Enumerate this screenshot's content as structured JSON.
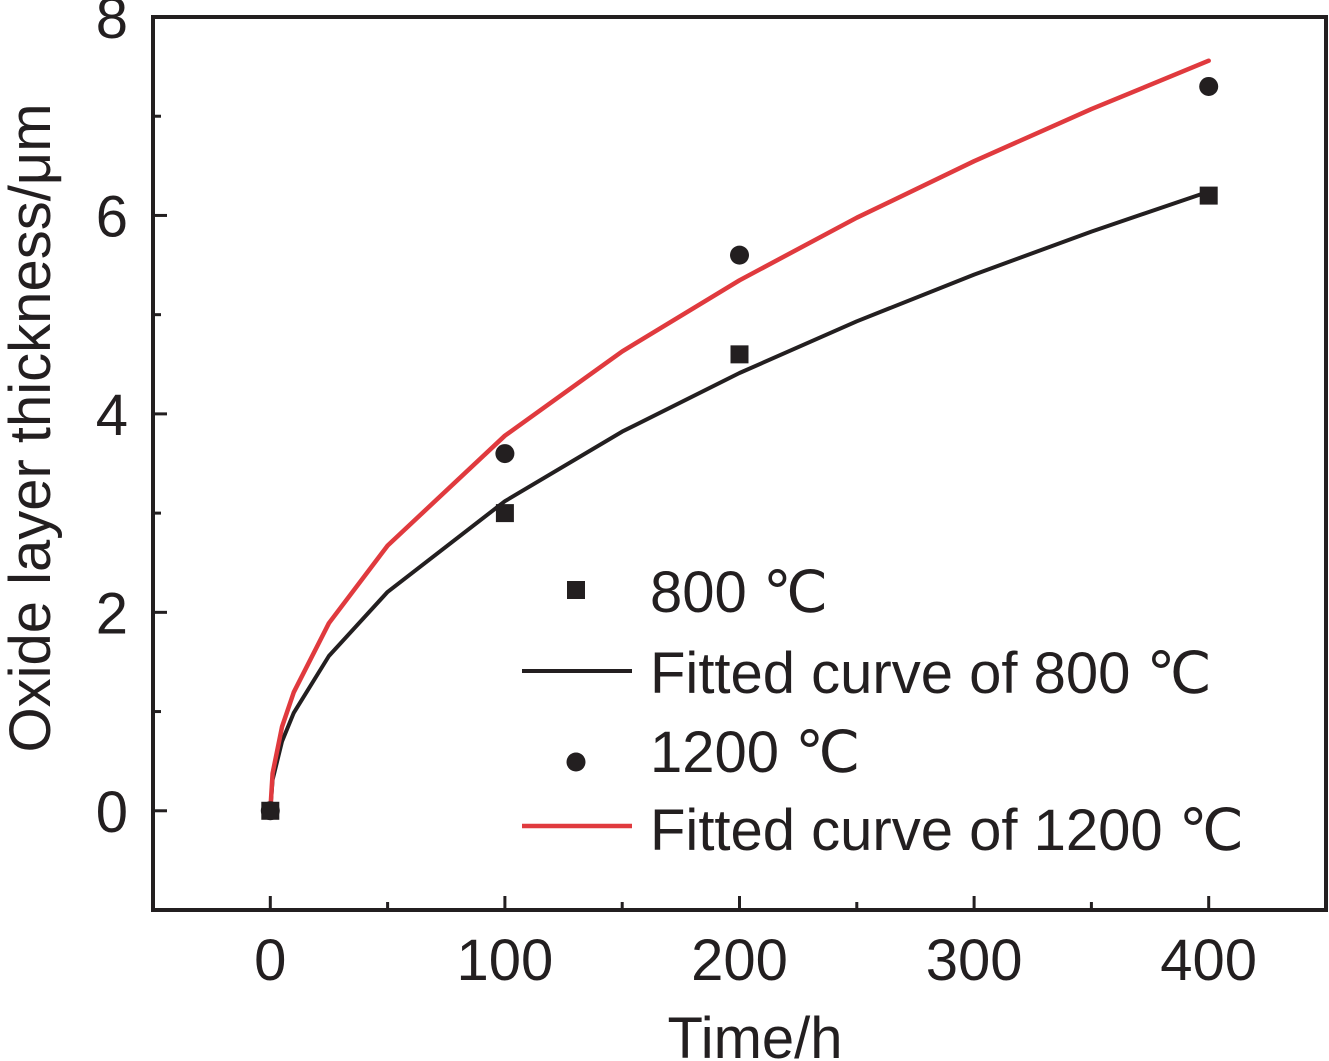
{
  "chart_data": {
    "type": "scatter",
    "title": "",
    "xlabel": "Time/h",
    "ylabel": "Oxide layer thickness/μm",
    "xlim": [
      -50,
      450
    ],
    "ylim": [
      -1,
      8
    ],
    "x_ticks": [
      0,
      100,
      200,
      300,
      400
    ],
    "y_ticks": [
      0,
      2,
      4,
      6,
      8
    ],
    "x_minor_ticks": [
      50,
      150,
      250,
      350
    ],
    "y_minor_ticks": [
      1,
      3,
      5,
      7
    ],
    "grid": false,
    "legend_position": "bottom-right",
    "series": [
      {
        "name": "800 ℃",
        "kind": "scatter",
        "marker": "square",
        "color": "#231f20",
        "x": [
          0,
          100,
          200,
          400
        ],
        "y": [
          0,
          3.0,
          4.6,
          6.2
        ]
      },
      {
        "name": "Fitted curve of 800 ℃",
        "kind": "line",
        "color": "#231f20",
        "model": "y = 0.312 * x^0.5",
        "x": [
          0,
          1,
          5,
          10,
          25,
          50,
          100,
          150,
          200,
          250,
          300,
          350,
          400
        ],
        "y": [
          0,
          0.312,
          0.698,
          0.987,
          1.56,
          2.206,
          3.12,
          3.821,
          4.412,
          4.933,
          5.404,
          5.837,
          6.24
        ]
      },
      {
        "name": "1200 ℃",
        "kind": "scatter",
        "marker": "circle",
        "color": "#231f20",
        "x": [
          0,
          100,
          200,
          400
        ],
        "y": [
          0,
          3.6,
          5.6,
          7.3
        ]
      },
      {
        "name": "Fitted curve of 1200 ℃",
        "kind": "line",
        "color": "#e03a3e",
        "model": "y = 0.378 * x^0.5",
        "x": [
          0,
          1,
          5,
          10,
          25,
          50,
          100,
          150,
          200,
          250,
          300,
          350,
          400
        ],
        "y": [
          0,
          0.378,
          0.845,
          1.195,
          1.89,
          2.673,
          3.78,
          4.63,
          5.346,
          5.977,
          6.547,
          7.072,
          7.56
        ]
      }
    ]
  }
}
